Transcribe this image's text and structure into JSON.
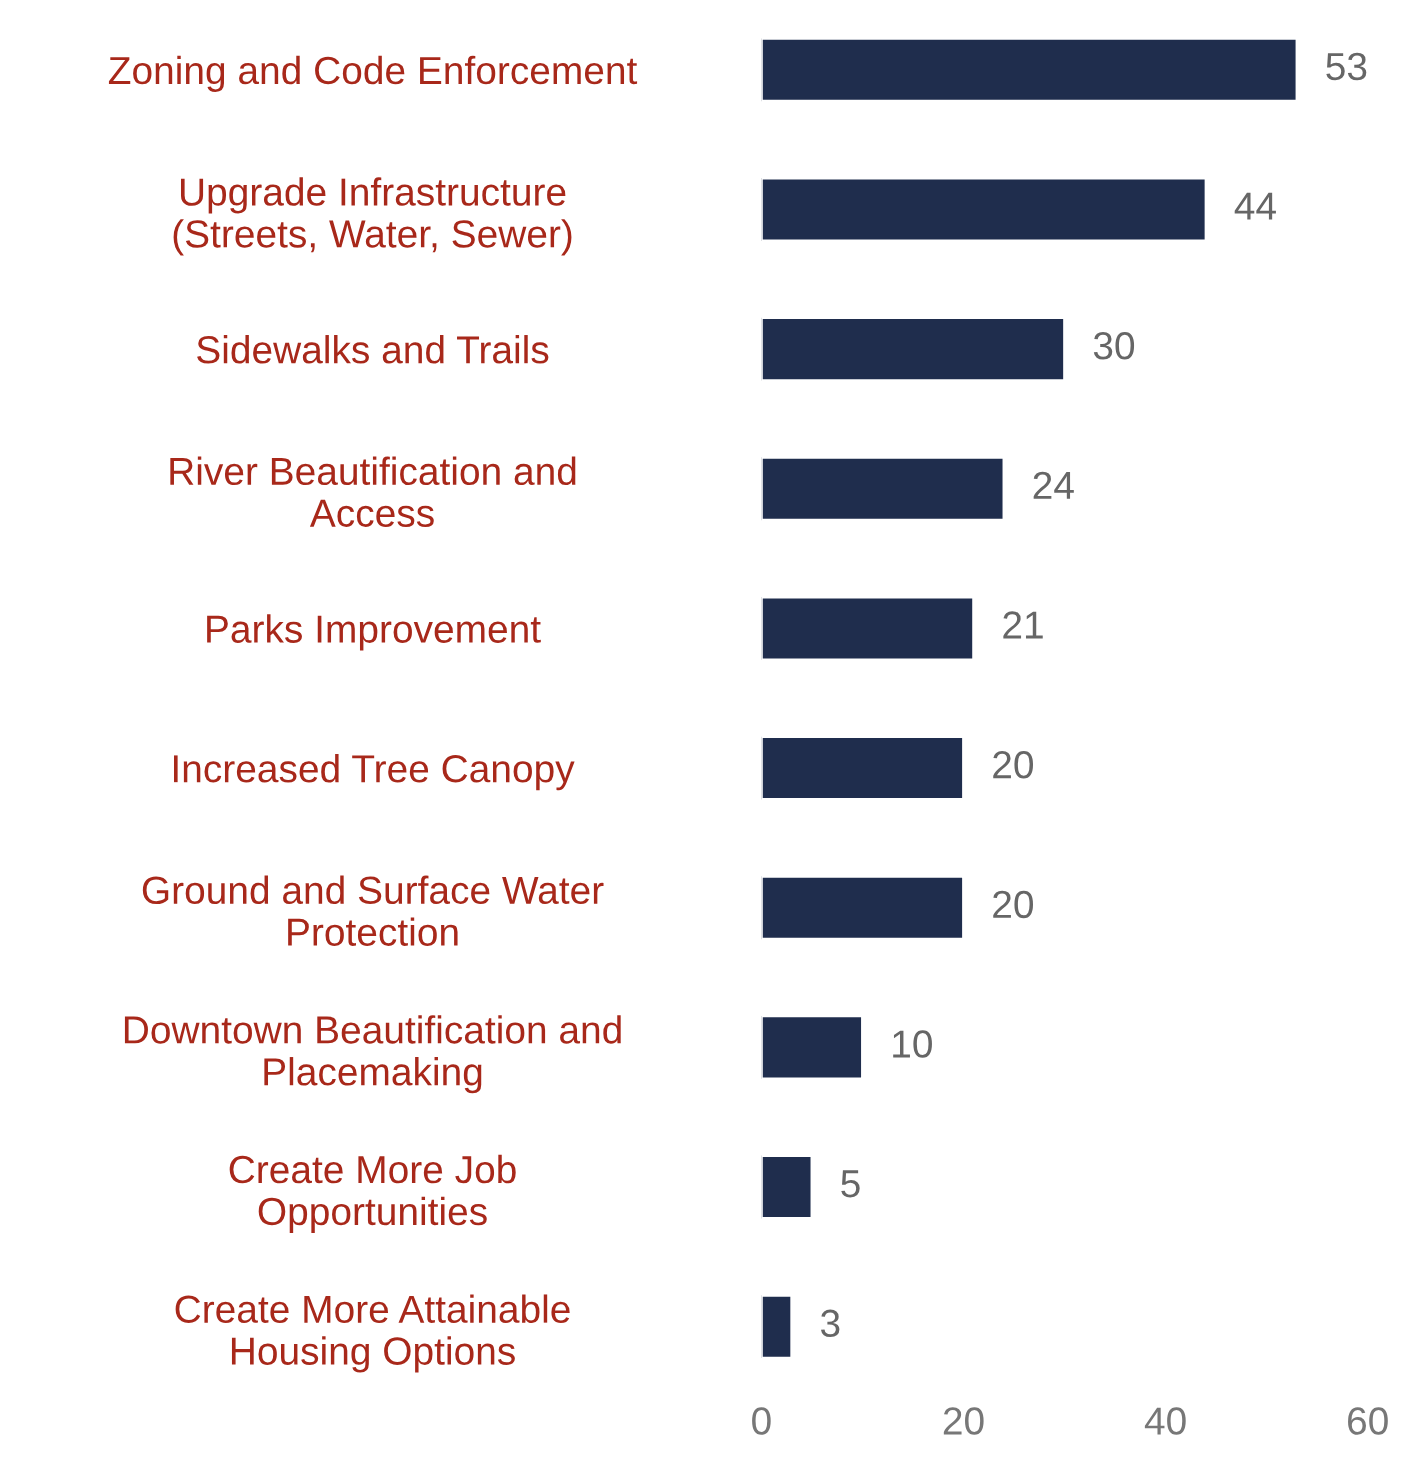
{
  "chart_data": {
    "type": "bar",
    "orientation": "horizontal",
    "categories": [
      "Zoning and Code Enforcement",
      "Upgrade Infrastructure\n(Streets, Water, Sewer)",
      "Sidewalks and Trails",
      "River Beautification and\nAccess",
      "Parks Improvement",
      "Increased Tree Canopy",
      "Ground and Surface Water\nProtection",
      "Downtown Beautification and\nPlacemaking",
      "Create More Job\nOpportunities",
      "Create More Attainable\nHousing Options"
    ],
    "values": [
      53,
      44,
      30,
      24,
      21,
      20,
      20,
      10,
      5,
      3
    ],
    "color": "#1f2d4d",
    "xlim": [
      0,
      60
    ],
    "xticks": [
      0,
      20,
      40,
      60
    ],
    "data_labels": true,
    "grid": false,
    "legend": false
  }
}
